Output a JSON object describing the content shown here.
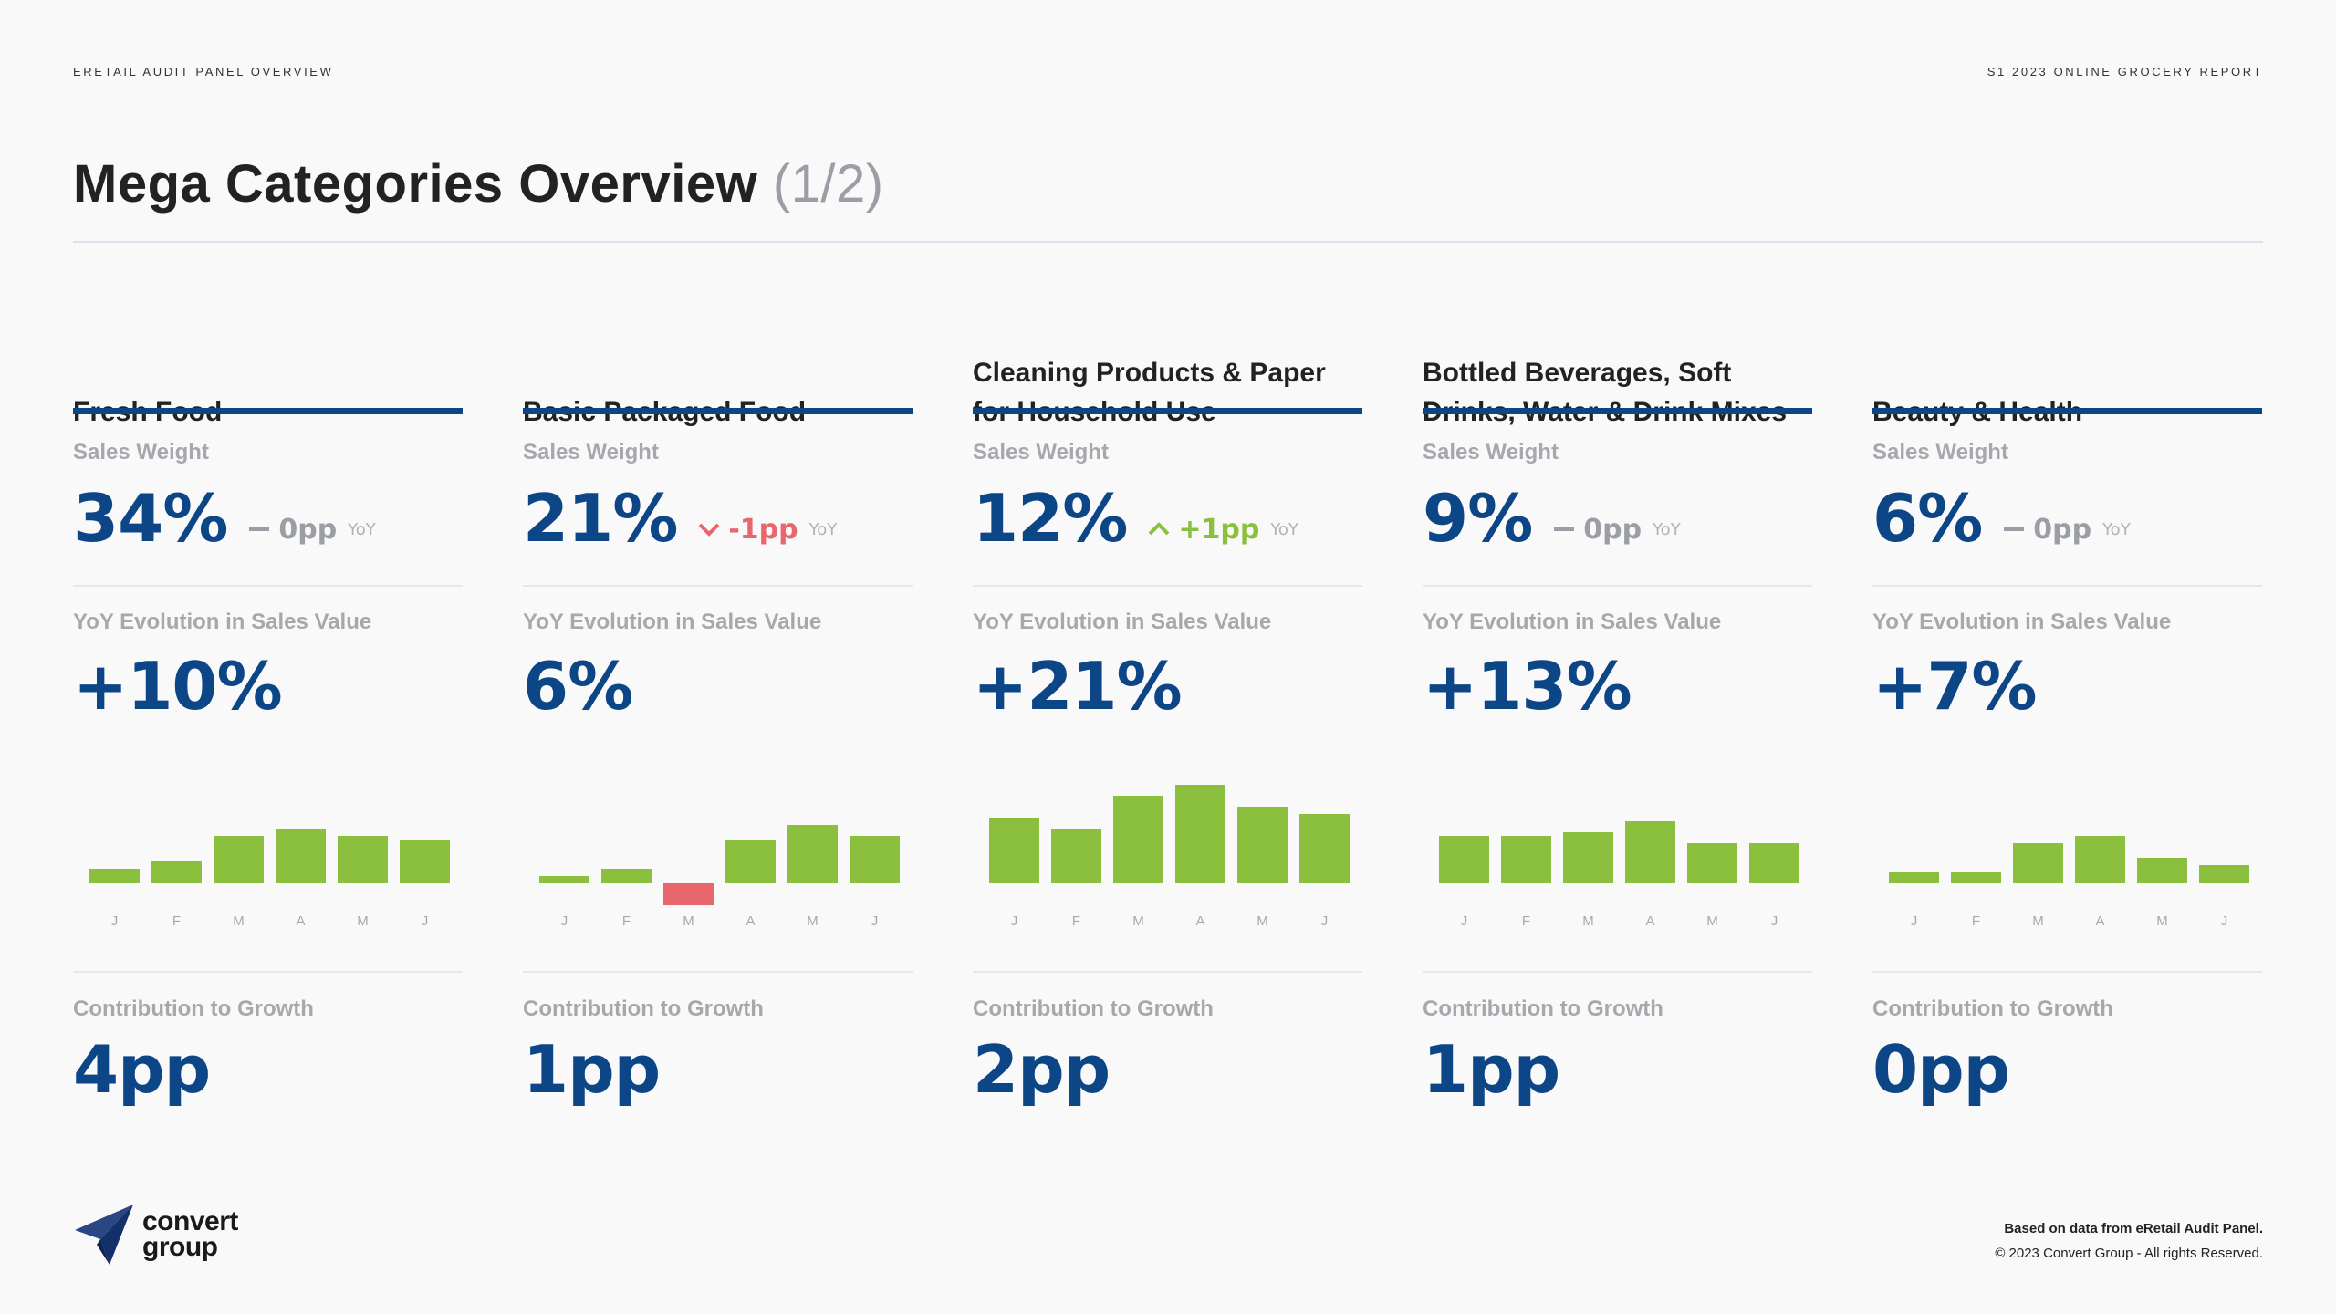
{
  "header": {
    "left_label": "ERETAIL AUDIT PANEL OVERVIEW",
    "right_label": "S1 2023 ONLINE GROCERY REPORT",
    "title": "Mega Categories Overview",
    "title_counter": "(1/2)"
  },
  "labels": {
    "sales_weight": "Sales Weight",
    "yoy_evolution": "YoY Evolution in Sales Value",
    "contribution": "Contribution to Growth",
    "yoy_tag": "YoY"
  },
  "colors": {
    "brand_blue": "#0d4686",
    "bar_green": "#8ac03e",
    "bar_red": "#e8676c",
    "neutral_gray": "#9c9ea6"
  },
  "categories": [
    {
      "title": "Fresh Food",
      "sales_weight": "34%",
      "weight_change": "0pp",
      "weight_trend": "flat",
      "yoy_evolution": "+10%",
      "contribution": "4pp"
    },
    {
      "title": "Basic Packaged Food",
      "sales_weight": "21%",
      "weight_change": "-1pp",
      "weight_trend": "down",
      "yoy_evolution": "6%",
      "contribution": "1pp"
    },
    {
      "title": "Cleaning Products & Paper for Household Use",
      "sales_weight": "12%",
      "weight_change": "+1pp",
      "weight_trend": "up",
      "yoy_evolution": "+21%",
      "contribution": "2pp"
    },
    {
      "title": "Bottled Beverages, Soft Drinks, Water & Drink Mixes",
      "sales_weight": "9%",
      "weight_change": "0pp",
      "weight_trend": "flat",
      "yoy_evolution": "+13%",
      "contribution": "1pp"
    },
    {
      "title": "Beauty & Health",
      "sales_weight": "6%",
      "weight_change": "0pp",
      "weight_trend": "flat",
      "yoy_evolution": "+7%",
      "contribution": "0pp"
    }
  ],
  "chart_data": [
    {
      "type": "bar",
      "categories": [
        "J",
        "F",
        "M",
        "A",
        "M",
        "J"
      ],
      "values": [
        4,
        6,
        13,
        15,
        13,
        12
      ]
    },
    {
      "type": "bar",
      "categories": [
        "J",
        "F",
        "M",
        "A",
        "M",
        "J"
      ],
      "values": [
        2,
        4,
        -6,
        12,
        16,
        13
      ]
    },
    {
      "type": "bar",
      "categories": [
        "J",
        "F",
        "M",
        "A",
        "M",
        "J"
      ],
      "values": [
        18,
        15,
        24,
        27,
        21,
        19
      ]
    },
    {
      "type": "bar",
      "categories": [
        "J",
        "F",
        "M",
        "A",
        "M",
        "J"
      ],
      "values": [
        13,
        13,
        14,
        17,
        11,
        11
      ]
    },
    {
      "type": "bar",
      "categories": [
        "J",
        "F",
        "M",
        "A",
        "M",
        "J"
      ],
      "values": [
        3,
        3,
        11,
        13,
        7,
        5
      ]
    }
  ],
  "footer": {
    "logo_line1": "convert",
    "logo_line2": "group",
    "note": "Based on data from eRetail Audit Panel.",
    "copyright": "© 2023 Convert Group - All rights Reserved."
  }
}
